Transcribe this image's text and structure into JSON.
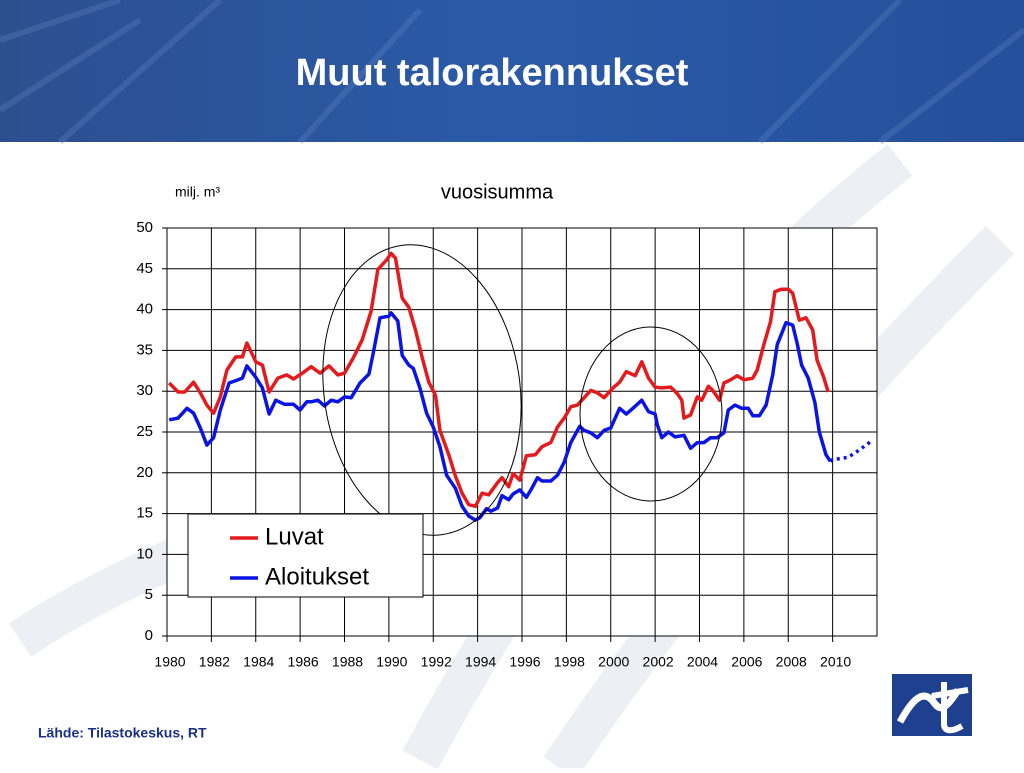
{
  "chart_data": {
    "type": "line",
    "title": "Muut talorakennukset",
    "subtitle": "vuosisumma",
    "y_label": "milj. m³",
    "source": "Lähde: Tilastokeskus, RT",
    "xlim": [
      1980,
      2012
    ],
    "xticks": [
      1980,
      1982,
      1984,
      1986,
      1988,
      1990,
      1992,
      1994,
      1996,
      1998,
      2000,
      2002,
      2004,
      2006,
      2008,
      2010
    ],
    "ylim": [
      0,
      50
    ],
    "yticks": [
      0,
      5,
      10,
      15,
      20,
      25,
      30,
      35,
      40,
      45,
      50
    ],
    "grid": true,
    "legend": "lower left",
    "series": [
      {
        "name": "Luvat",
        "color": "#e41a1c",
        "x": [
          1980.1,
          1980.5,
          1980.8,
          1981.2,
          1981.5,
          1981.8,
          1982.1,
          1982.4,
          1982.7,
          1983.1,
          1983.4,
          1983.6,
          1984.0,
          1984.3,
          1984.6,
          1985.0,
          1985.4,
          1985.7,
          1986.1,
          1986.5,
          1986.9,
          1987.3,
          1987.7,
          1988.0,
          1988.4,
          1988.8,
          1989.2,
          1989.5,
          1989.9,
          1990.1,
          1990.3,
          1990.6,
          1990.9,
          1991.2,
          1991.5,
          1991.8,
          1992.1,
          1992.3,
          1992.7,
          1993.0,
          1993.3,
          1993.6,
          1993.9,
          1994.2,
          1994.5,
          1994.9,
          1995.1,
          1995.4,
          1995.6,
          1995.9,
          1996.2,
          1996.6,
          1996.9,
          1997.3,
          1997.6,
          1997.9,
          1998.2,
          1998.5,
          1998.8,
          1999.1,
          1999.4,
          1999.7,
          2000.1,
          2000.4,
          2000.7,
          2001.1,
          2001.4,
          2001.7,
          2002.0,
          2002.3,
          2002.7,
          2003.0,
          2003.2,
          2003.3,
          2003.6,
          2003.9,
          2004.1,
          2004.4,
          2004.6,
          2004.9,
          2005.1,
          2005.4,
          2005.7,
          2006.0,
          2006.4,
          2006.6,
          2006.9,
          2007.2,
          2007.4,
          2007.7,
          2008.0,
          2008.2,
          2008.5,
          2008.8,
          2009.1,
          2009.3,
          2009.6,
          2009.8
        ],
        "values": [
          31.0,
          29.9,
          29.9,
          31.1,
          29.8,
          28.3,
          27.3,
          29.3,
          32.6,
          34.2,
          34.2,
          35.9,
          33.6,
          33.2,
          29.9,
          31.6,
          32.0,
          31.5,
          32.2,
          33.0,
          32.2,
          33.1,
          32.0,
          32.2,
          34.1,
          36.3,
          39.8,
          44.9,
          46.1,
          46.9,
          46.3,
          41.4,
          40.3,
          37.5,
          34.1,
          31.1,
          29.5,
          25.2,
          22.2,
          19.6,
          17.5,
          16.1,
          15.9,
          17.5,
          17.3,
          18.8,
          19.4,
          18.3,
          19.9,
          19.1,
          22.1,
          22.2,
          23.2,
          23.7,
          25.6,
          26.7,
          28.1,
          28.3,
          29.2,
          30.1,
          29.8,
          29.2,
          30.4,
          31.1,
          32.4,
          31.9,
          33.6,
          31.6,
          30.5,
          30.4,
          30.5,
          29.7,
          28.9,
          26.7,
          27.1,
          29.3,
          28.9,
          30.6,
          30.1,
          28.9,
          31.0,
          31.4,
          31.9,
          31.4,
          31.6,
          32.6,
          35.7,
          38.5,
          42.2,
          42.5,
          42.5,
          42.0,
          38.7,
          39.0,
          37.5,
          33.8,
          31.7,
          29.9
        ]
      },
      {
        "name": "Aloitukset",
        "color": "#0a14e6",
        "x": [
          1980.1,
          1980.5,
          1980.9,
          1981.2,
          1981.5,
          1981.8,
          1982.1,
          1982.4,
          1982.8,
          1983.1,
          1983.4,
          1983.6,
          1984.0,
          1984.3,
          1984.6,
          1984.9,
          1985.3,
          1985.7,
          1986.0,
          1986.3,
          1986.5,
          1986.8,
          1987.1,
          1987.4,
          1987.7,
          1988.0,
          1988.3,
          1988.7,
          1989.1,
          1989.3,
          1989.6,
          1990.0,
          1990.1,
          1990.4,
          1990.6,
          1990.9,
          1991.1,
          1991.4,
          1991.7,
          1992.0,
          1992.3,
          1992.6,
          1993.0,
          1993.3,
          1993.6,
          1993.9,
          1994.1,
          1994.4,
          1994.6,
          1994.9,
          1995.1,
          1995.4,
          1995.6,
          1995.9,
          1996.2,
          1996.4,
          1996.7,
          1996.9,
          1997.3,
          1997.6,
          1997.9,
          1998.2,
          1998.6,
          1998.8,
          1999.1,
          1999.4,
          1999.7,
          2000.0,
          2000.4,
          2000.7,
          2001.0,
          2001.4,
          2001.7,
          2002.0,
          2002.1,
          2002.3,
          2002.6,
          2002.9,
          2003.3,
          2003.6,
          2003.9,
          2004.2,
          2004.5,
          2004.8,
          2005.1,
          2005.3,
          2005.6,
          2005.9,
          2006.2,
          2006.4,
          2006.7,
          2007.0,
          2007.3,
          2007.5,
          2007.9,
          2008.2,
          2008.4,
          2008.6,
          2008.9,
          2009.2,
          2009.4,
          2009.7,
          2009.9
        ],
        "values": [
          26.5,
          26.7,
          27.9,
          27.3,
          25.5,
          23.4,
          24.3,
          27.7,
          31.0,
          31.3,
          31.6,
          33.1,
          31.7,
          30.4,
          27.2,
          28.9,
          28.4,
          28.4,
          27.7,
          28.7,
          28.7,
          28.9,
          28.2,
          28.9,
          28.7,
          29.3,
          29.2,
          31.0,
          32.1,
          34.7,
          39.0,
          39.2,
          39.6,
          38.6,
          34.4,
          33.2,
          32.8,
          30.4,
          27.3,
          25.6,
          23.2,
          19.7,
          18.1,
          15.9,
          14.7,
          14.2,
          14.5,
          15.6,
          15.3,
          15.7,
          17.2,
          16.7,
          17.4,
          17.9,
          17.0,
          17.9,
          19.4,
          19.0,
          19.0,
          19.7,
          21.3,
          23.7,
          25.7,
          25.2,
          24.9,
          24.3,
          25.2,
          25.5,
          27.9,
          27.2,
          27.9,
          28.9,
          27.5,
          27.2,
          25.9,
          24.3,
          25.0,
          24.4,
          24.6,
          23.0,
          23.7,
          23.7,
          24.3,
          24.3,
          24.9,
          27.7,
          28.3,
          27.9,
          27.9,
          27.0,
          27.0,
          28.3,
          32.0,
          35.7,
          38.4,
          38.1,
          35.9,
          33.2,
          31.6,
          28.6,
          25.0,
          22.2,
          21.4
        ],
        "forecast_x": [
          2009.9,
          2010.0,
          2010.7,
          2011.2,
          2011.8
        ],
        "forecast_values": [
          21.4,
          21.6,
          21.9,
          22.8,
          24.0
        ]
      }
    ]
  }
}
